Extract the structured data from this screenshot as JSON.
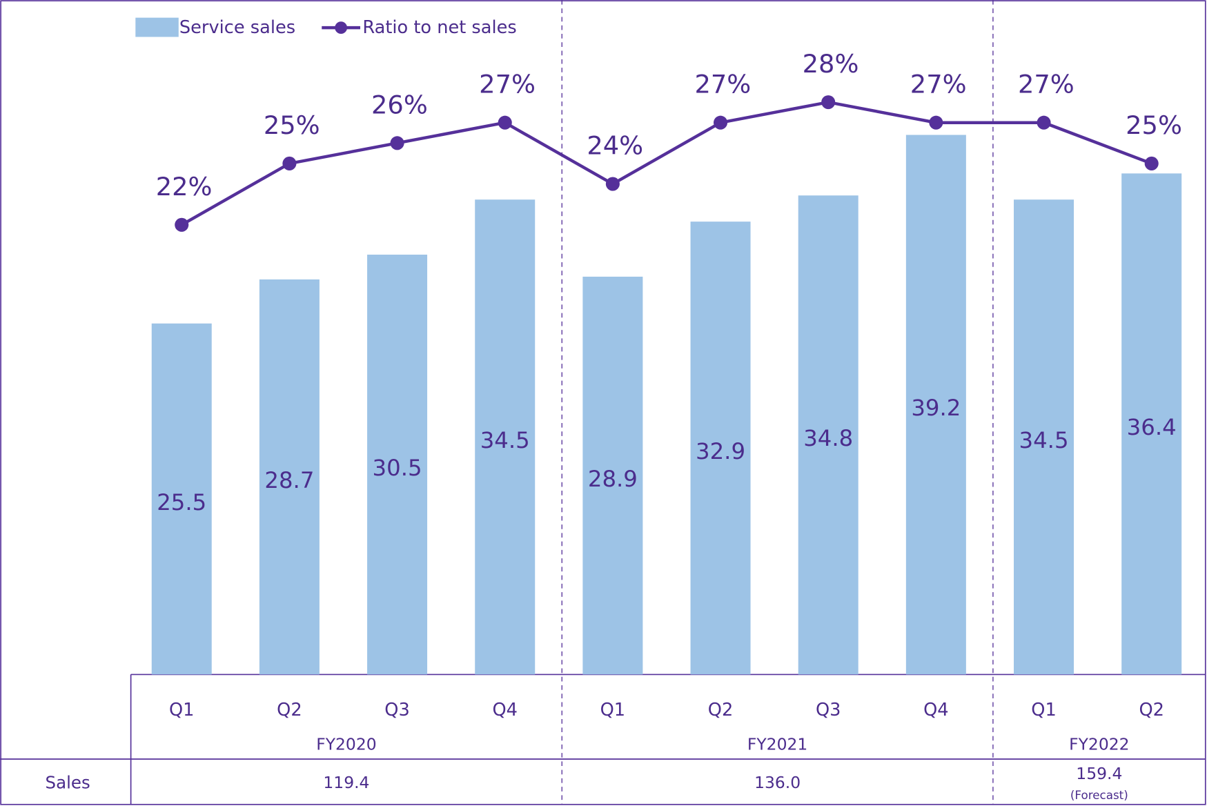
{
  "chart_data": {
    "type": "bar",
    "categories": [
      "Q1",
      "Q2",
      "Q3",
      "Q4",
      "Q1",
      "Q2",
      "Q3",
      "Q4",
      "Q1",
      "Q2"
    ],
    "series": [
      {
        "name": "Service sales",
        "color": "#9dc3e6",
        "values": [
          25.5,
          28.7,
          30.5,
          34.5,
          28.9,
          32.9,
          34.8,
          39.2,
          34.5,
          36.4
        ]
      },
      {
        "name": "Ratio to net sales",
        "color": "#55309a",
        "axis": "y2",
        "values": [
          22,
          25,
          26,
          27,
          24,
          27,
          28,
          27,
          27,
          25
        ],
        "value_labels": [
          "22%",
          "25%",
          "26%",
          "27%",
          "24%",
          "27%",
          "28%",
          "27%",
          "27%",
          "25%"
        ]
      }
    ],
    "ylim": [
      0,
      49
    ],
    "y2lim": [
      0,
      33
    ],
    "groups": {
      "names": [
        "FY2020",
        "FY2021",
        "FY2022"
      ],
      "row_label": "Sales",
      "values": [
        119.4,
        136.0,
        159.4
      ],
      "value_labels": [
        "119.4",
        "136.0",
        "159.4"
      ],
      "annotation": "(Forecast)"
    }
  }
}
